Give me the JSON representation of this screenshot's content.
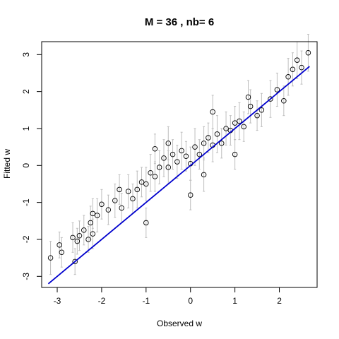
{
  "chart_data": {
    "type": "scatter",
    "title": "M =  36 , nb= 6",
    "xlabel": "Observed w",
    "ylabel": "Fitted w",
    "xlim": [
      -3.35,
      2.85
    ],
    "ylim": [
      -3.3,
      3.35
    ],
    "x_ticks": [
      -3,
      -2,
      -1,
      0,
      1,
      2
    ],
    "y_ticks": [
      -3,
      -2,
      -1,
      0,
      1,
      2,
      3
    ],
    "grid": false,
    "legend": "none",
    "colors": {
      "points": "#000000",
      "error_bars": "#bebebe",
      "fit_line": "#0000cd",
      "frame": "#000000"
    },
    "fit_line": {
      "x": [
        -3.2,
        2.68
      ],
      "y": [
        -3.2,
        2.68
      ]
    },
    "series": [
      {
        "marker": "open-circle",
        "x": [
          -3.15,
          -2.95,
          -2.9,
          -2.65,
          -2.6,
          -2.55,
          -2.5,
          -2.4,
          -2.3,
          -2.25,
          -2.2,
          -2.1,
          -2.0,
          -1.85,
          -1.7,
          -1.55,
          -1.4,
          -1.3,
          -1.2,
          -1.1,
          -1.0,
          -0.9,
          -0.8,
          -0.7,
          -0.6,
          -0.5,
          -0.4,
          -0.3,
          -0.2,
          -0.1,
          0.0,
          0.1,
          0.2,
          0.3,
          0.4,
          0.5,
          0.6,
          0.7,
          0.8,
          0.9,
          1.0,
          1.1,
          1.2,
          1.35,
          1.5,
          1.6,
          1.8,
          1.95,
          2.1,
          2.2,
          2.3,
          2.4,
          2.5,
          2.65,
          -1.6,
          -1.0,
          -0.5,
          0.0,
          0.5,
          1.0,
          -0.8,
          0.3,
          1.3,
          -2.2
        ],
        "y": [
          -2.5,
          -2.15,
          -2.35,
          -1.95,
          -2.6,
          -2.05,
          -1.9,
          -1.75,
          -2.0,
          -1.55,
          -1.85,
          -1.35,
          -1.05,
          -1.2,
          -0.95,
          -1.15,
          -0.7,
          -0.9,
          -0.65,
          -0.45,
          -0.5,
          -0.2,
          -0.3,
          -0.05,
          0.2,
          -0.05,
          0.3,
          0.1,
          0.4,
          0.25,
          0.05,
          0.5,
          0.3,
          0.6,
          0.75,
          0.55,
          0.85,
          0.6,
          1.0,
          0.95,
          1.15,
          1.2,
          1.05,
          1.6,
          1.35,
          1.5,
          1.8,
          2.05,
          1.75,
          2.4,
          2.6,
          2.85,
          2.65,
          3.05,
          -0.65,
          -1.55,
          0.6,
          -0.8,
          1.45,
          0.3,
          0.45,
          -0.25,
          1.85,
          -1.3
        ],
        "err": [
          0.45,
          0.35,
          0.4,
          0.4,
          0.35,
          0.35,
          0.4,
          0.4,
          0.35,
          0.45,
          0.4,
          0.45,
          0.4,
          0.4,
          0.45,
          0.4,
          0.45,
          0.4,
          0.5,
          0.4,
          0.45,
          0.5,
          0.4,
          0.45,
          0.5,
          0.45,
          0.4,
          0.45,
          0.5,
          0.4,
          0.45,
          0.5,
          0.4,
          0.45,
          0.4,
          0.45,
          0.5,
          0.4,
          0.45,
          0.4,
          0.45,
          0.5,
          0.4,
          0.45,
          0.4,
          0.45,
          0.5,
          0.45,
          0.4,
          0.5,
          0.45,
          0.5,
          0.45,
          0.5,
          0.4,
          0.4,
          0.45,
          0.4,
          0.45,
          0.4,
          0.4,
          0.45,
          0.45,
          0.4
        ]
      }
    ]
  }
}
